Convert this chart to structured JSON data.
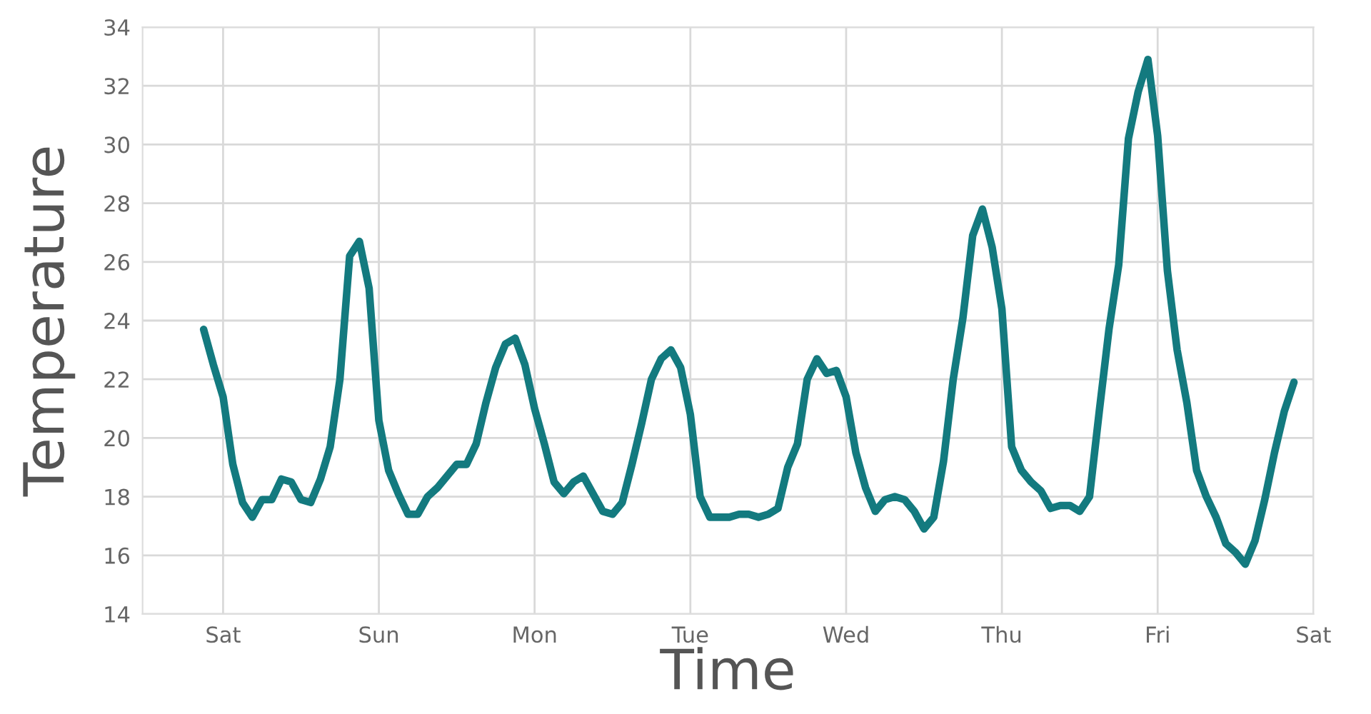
{
  "chart_data": {
    "type": "line",
    "xlabel": "Time",
    "ylabel": "Temperature",
    "categories": [
      null,
      null,
      "Sat",
      null,
      null,
      null,
      null,
      null,
      null,
      null,
      null,
      null,
      null,
      null,
      null,
      null,
      null,
      null,
      "Sun",
      null,
      null,
      null,
      null,
      null,
      null,
      null,
      null,
      null,
      null,
      null,
      null,
      null,
      null,
      null,
      "Mon",
      null,
      null,
      null,
      null,
      null,
      null,
      null,
      null,
      null,
      null,
      null,
      null,
      null,
      null,
      null,
      "Tue",
      null,
      null,
      null,
      null,
      null,
      null,
      null,
      null,
      null,
      null,
      null,
      null,
      null,
      null,
      null,
      "Wed",
      null,
      null,
      null,
      null,
      null,
      null,
      null,
      null,
      null,
      null,
      null,
      null,
      null,
      null,
      null,
      "Thu",
      null,
      null,
      null,
      null,
      null,
      null,
      null,
      null,
      null,
      null,
      null,
      null,
      null,
      null,
      null,
      "Fri",
      null,
      null,
      null,
      null,
      null,
      null,
      null,
      null,
      null,
      null,
      null,
      null,
      null,
      null,
      null,
      "Sat"
    ],
    "series": [
      {
        "color": "#137a7f",
        "values": [
          23.7,
          22.5,
          21.4,
          19.1,
          17.8,
          17.3,
          17.9,
          17.9,
          18.6,
          18.5,
          17.9,
          17.8,
          18.6,
          19.7,
          22.0,
          26.2,
          26.7,
          25.1,
          20.6,
          18.9,
          18.1,
          17.4,
          17.4,
          18.0,
          18.3,
          18.7,
          19.1,
          19.1,
          19.8,
          21.2,
          22.4,
          23.2,
          23.4,
          22.5,
          21.0,
          19.8,
          18.5,
          18.1,
          18.5,
          18.7,
          18.1,
          17.5,
          17.4,
          17.8,
          19.1,
          20.5,
          22.0,
          22.7,
          23.0,
          22.4,
          20.8,
          18.0,
          17.3,
          17.3,
          17.3,
          17.4,
          17.4,
          17.3,
          17.4,
          17.6,
          19.0,
          19.8,
          22.0,
          22.7,
          22.2,
          22.3,
          21.4,
          19.5,
          18.3,
          17.5,
          17.9,
          18.0,
          17.9,
          17.5,
          16.9,
          17.3,
          19.2,
          22.0,
          24.1,
          26.9,
          27.8,
          26.5,
          24.4,
          19.7,
          18.9,
          18.5,
          18.2,
          17.6,
          17.7,
          17.7,
          17.5,
          18.0,
          20.9,
          23.7,
          25.9,
          30.2,
          31.8,
          32.9,
          30.3,
          25.7,
          23.0,
          21.2,
          18.9,
          18.0,
          17.3,
          16.4,
          16.1,
          15.7,
          16.5,
          17.9,
          19.5,
          20.9,
          21.9,
          null,
          null
        ]
      }
    ],
    "ylim": [
      14,
      34
    ],
    "yticks": [
      14,
      16,
      18,
      20,
      22,
      24,
      26,
      28,
      30,
      32,
      34
    ],
    "grid": true,
    "line_style": "solid"
  }
}
